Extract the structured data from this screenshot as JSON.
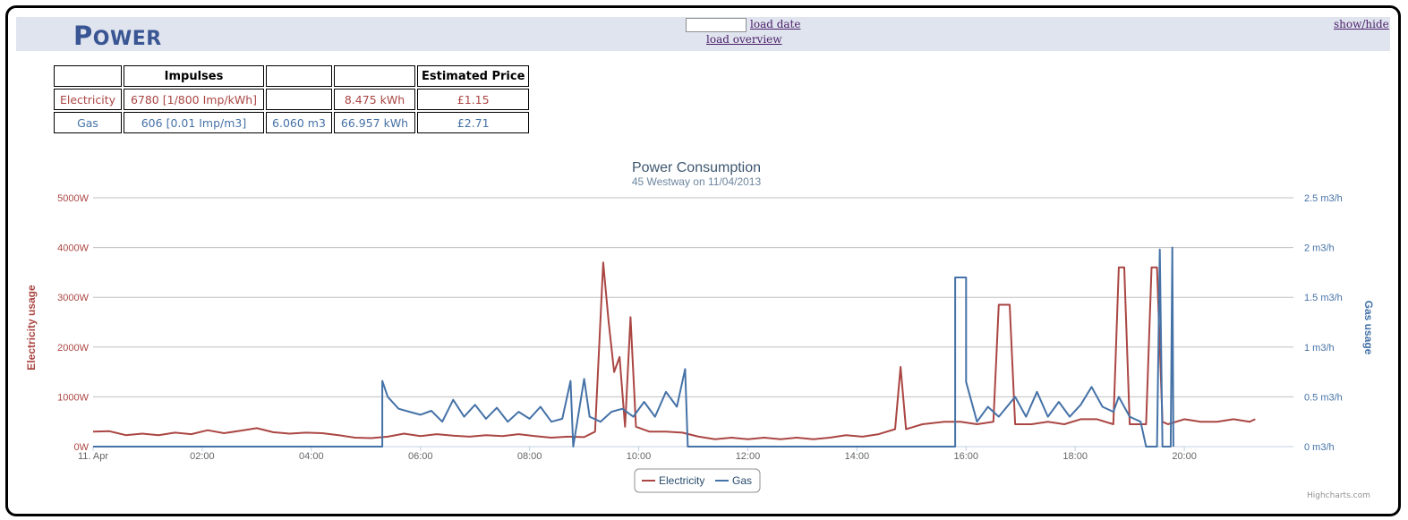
{
  "header": {
    "title_first": "P",
    "title_rest": "OWER",
    "load_date_label": "load date",
    "load_overview_label": "load overview",
    "show_hide_label": "show/hide",
    "date_input_value": ""
  },
  "stats": {
    "headers": [
      "",
      "Impulses",
      "",
      "",
      "Estimated Price"
    ],
    "rows": [
      {
        "label": "Electricity",
        "impulses": "6780 [1/800 Imp/kWh]",
        "volume": "",
        "energy": "8.475 kWh",
        "price": "£1.15"
      },
      {
        "label": "Gas",
        "impulses": "606 [0.01 Imp/m3]",
        "volume": "6.060 m3",
        "energy": "66.957 kWh",
        "price": "£2.71"
      }
    ]
  },
  "colors": {
    "electricity": "#aa4643",
    "gas": "#4572a7"
  },
  "credit": "Highcharts.com",
  "chart_data": {
    "type": "line",
    "title": "Power Consumption",
    "subtitle": "45 Westway on 11/04/2013",
    "xlabel": "",
    "x_ticks": [
      "11. Apr",
      "02:00",
      "04:00",
      "06:00",
      "08:00",
      "10:00",
      "12:00",
      "14:00",
      "16:00",
      "18:00",
      "20:00"
    ],
    "xlim_hours": [
      0,
      22
    ],
    "y_left": {
      "label": "Electricity usage",
      "ylim": [
        0,
        5000
      ],
      "ticks": [
        "0W",
        "1000W",
        "2000W",
        "3000W",
        "4000W",
        "5000W"
      ]
    },
    "y_right": {
      "label": "Gas usage",
      "ylim": [
        0,
        2.5
      ],
      "ticks": [
        "0 m3/h",
        "0.5 m3/h",
        "1 m3/h",
        "1.5 m3/h",
        "2 m3/h",
        "2.5 m3/h"
      ]
    },
    "legend": {
      "placement": "bottom-center",
      "items": [
        "Electricity",
        "Gas"
      ]
    },
    "series": [
      {
        "name": "Electricity",
        "axis": "left",
        "points": [
          [
            0.0,
            300
          ],
          [
            0.3,
            310
          ],
          [
            0.6,
            230
          ],
          [
            0.9,
            260
          ],
          [
            1.2,
            230
          ],
          [
            1.5,
            280
          ],
          [
            1.8,
            250
          ],
          [
            2.1,
            330
          ],
          [
            2.4,
            270
          ],
          [
            2.7,
            320
          ],
          [
            3.0,
            370
          ],
          [
            3.3,
            290
          ],
          [
            3.6,
            260
          ],
          [
            3.9,
            280
          ],
          [
            4.2,
            270
          ],
          [
            4.5,
            230
          ],
          [
            4.8,
            180
          ],
          [
            5.1,
            170
          ],
          [
            5.4,
            200
          ],
          [
            5.7,
            260
          ],
          [
            6.0,
            210
          ],
          [
            6.3,
            250
          ],
          [
            6.6,
            220
          ],
          [
            6.9,
            200
          ],
          [
            7.2,
            230
          ],
          [
            7.5,
            210
          ],
          [
            7.8,
            250
          ],
          [
            8.1,
            210
          ],
          [
            8.4,
            180
          ],
          [
            8.7,
            200
          ],
          [
            9.0,
            190
          ],
          [
            9.2,
            300
          ],
          [
            9.35,
            3700
          ],
          [
            9.45,
            2500
          ],
          [
            9.55,
            1500
          ],
          [
            9.65,
            1800
          ],
          [
            9.75,
            400
          ],
          [
            9.85,
            2600
          ],
          [
            9.95,
            400
          ],
          [
            10.2,
            300
          ],
          [
            10.5,
            300
          ],
          [
            10.8,
            280
          ],
          [
            11.1,
            200
          ],
          [
            11.4,
            150
          ],
          [
            11.7,
            180
          ],
          [
            12.0,
            150
          ],
          [
            12.3,
            180
          ],
          [
            12.6,
            150
          ],
          [
            12.9,
            180
          ],
          [
            13.2,
            150
          ],
          [
            13.5,
            180
          ],
          [
            13.8,
            230
          ],
          [
            14.1,
            200
          ],
          [
            14.4,
            250
          ],
          [
            14.7,
            350
          ],
          [
            14.8,
            1600
          ],
          [
            14.9,
            350
          ],
          [
            15.2,
            450
          ],
          [
            15.6,
            500
          ],
          [
            15.9,
            500
          ],
          [
            16.2,
            450
          ],
          [
            16.5,
            500
          ],
          [
            16.6,
            2850
          ],
          [
            16.8,
            2850
          ],
          [
            16.9,
            450
          ],
          [
            17.2,
            450
          ],
          [
            17.5,
            500
          ],
          [
            17.8,
            450
          ],
          [
            18.1,
            550
          ],
          [
            18.4,
            550
          ],
          [
            18.7,
            450
          ],
          [
            18.8,
            3600
          ],
          [
            18.9,
            3600
          ],
          [
            19.0,
            450
          ],
          [
            19.3,
            450
          ],
          [
            19.4,
            3600
          ],
          [
            19.5,
            3600
          ],
          [
            19.6,
            500
          ],
          [
            19.7,
            450
          ],
          [
            20.0,
            550
          ],
          [
            20.3,
            500
          ],
          [
            20.6,
            500
          ],
          [
            20.9,
            550
          ],
          [
            21.2,
            500
          ],
          [
            21.3,
            550
          ]
        ]
      },
      {
        "name": "Gas",
        "axis": "right",
        "points": [
          [
            0.0,
            0
          ],
          [
            5.3,
            0
          ],
          [
            5.3,
            0.66
          ],
          [
            5.4,
            0.5
          ],
          [
            5.6,
            0.38
          ],
          [
            5.8,
            0.35
          ],
          [
            6.0,
            0.32
          ],
          [
            6.2,
            0.36
          ],
          [
            6.4,
            0.25
          ],
          [
            6.6,
            0.47
          ],
          [
            6.8,
            0.3
          ],
          [
            7.0,
            0.42
          ],
          [
            7.2,
            0.28
          ],
          [
            7.4,
            0.39
          ],
          [
            7.6,
            0.25
          ],
          [
            7.8,
            0.35
          ],
          [
            8.0,
            0.28
          ],
          [
            8.2,
            0.4
          ],
          [
            8.4,
            0.25
          ],
          [
            8.6,
            0.28
          ],
          [
            8.75,
            0.66
          ],
          [
            8.8,
            0
          ],
          [
            9.0,
            0.68
          ],
          [
            9.1,
            0.3
          ],
          [
            9.3,
            0.25
          ],
          [
            9.5,
            0.35
          ],
          [
            9.7,
            0.38
          ],
          [
            9.9,
            0.3
          ],
          [
            10.1,
            0.45
          ],
          [
            10.3,
            0.3
          ],
          [
            10.5,
            0.55
          ],
          [
            10.7,
            0.4
          ],
          [
            10.85,
            0.78
          ],
          [
            10.9,
            0
          ],
          [
            15.8,
            0
          ],
          [
            15.8,
            1.7
          ],
          [
            16.0,
            1.7
          ],
          [
            16.0,
            0.65
          ],
          [
            16.2,
            0.25
          ],
          [
            16.4,
            0.4
          ],
          [
            16.6,
            0.3
          ],
          [
            16.9,
            0.5
          ],
          [
            17.1,
            0.3
          ],
          [
            17.3,
            0.55
          ],
          [
            17.5,
            0.3
          ],
          [
            17.7,
            0.45
          ],
          [
            17.9,
            0.3
          ],
          [
            18.1,
            0.42
          ],
          [
            18.3,
            0.6
          ],
          [
            18.5,
            0.4
          ],
          [
            18.7,
            0.35
          ],
          [
            18.8,
            0.5
          ],
          [
            19.0,
            0.3
          ],
          [
            19.2,
            0.25
          ],
          [
            19.3,
            0
          ],
          [
            19.5,
            0
          ],
          [
            19.55,
            1.98
          ],
          [
            19.6,
            0
          ],
          [
            19.75,
            0
          ],
          [
            19.78,
            2.0
          ],
          [
            19.8,
            0
          ]
        ]
      }
    ]
  }
}
